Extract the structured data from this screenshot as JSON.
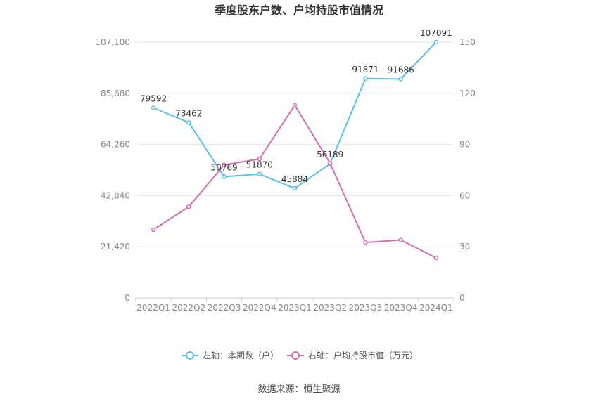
{
  "chart_data": {
    "type": "line",
    "title": "季度股东户数、户均持股市值情况",
    "categories": [
      "2022Q1",
      "2022Q2",
      "2022Q3",
      "2022Q4",
      "2023Q1",
      "2023Q2",
      "2023Q3",
      "2023Q4",
      "2024Q1"
    ],
    "left_axis": {
      "min": 0,
      "max": 107100,
      "ticks": [
        "0",
        "21,420",
        "42,840",
        "64,260",
        "85,680",
        "107,100"
      ]
    },
    "right_axis": {
      "min": 0,
      "max": 150,
      "ticks": [
        "0",
        "30",
        "60",
        "90",
        "120",
        "150"
      ]
    },
    "grid": true,
    "legend_position": "bottom",
    "series": [
      {
        "name": "左轴：本期数（户）",
        "axis": "left",
        "color": "#5bc0eb",
        "values": [
          79592,
          73462,
          50769,
          51870,
          45884,
          56189,
          91871,
          91686,
          107091
        ],
        "labels": [
          "79592",
          "73462",
          "50769",
          "51870",
          "45884",
          "56189",
          "91871",
          "91686",
          "107091"
        ]
      },
      {
        "name": "右轴：户均持股市值（万元）",
        "axis": "right",
        "color": "#d46fb1",
        "values": [
          40.0,
          53.5,
          78.0,
          81.5,
          113.0,
          79.0,
          32.5,
          34.0,
          23.5
        ]
      }
    ]
  },
  "source": "数据来源：恒生聚源"
}
